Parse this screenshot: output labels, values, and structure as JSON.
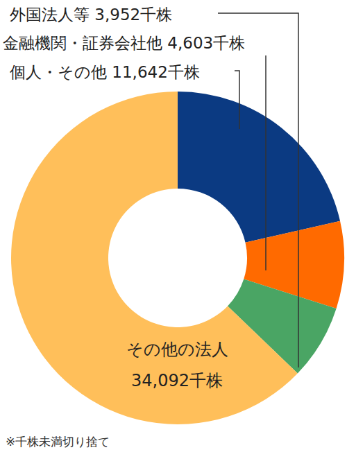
{
  "chart_data": {
    "type": "pie",
    "categories": [
      "個人・その他",
      "金融機関・証券会社他",
      "外国法人等",
      "その他の法人"
    ],
    "values": [
      11642,
      4603,
      3952,
      34092
    ],
    "value_labels": [
      "11,642千株",
      "4,603千株",
      "3,952千株",
      "34,092千株"
    ],
    "colors": [
      "#0b3a82",
      "#ff6a00",
      "#4aa564",
      "#ffbf5a"
    ],
    "data_labels": true,
    "annotations": [
      "※千株未満切り捨て"
    ]
  }
}
